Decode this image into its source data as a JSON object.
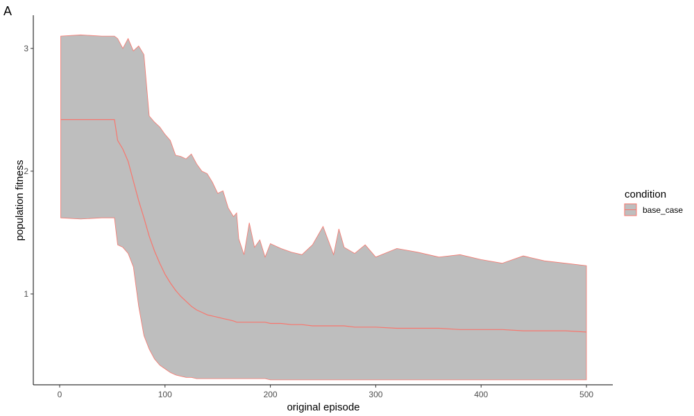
{
  "panel_tag": "A",
  "chart_data": {
    "type": "area",
    "xlabel": "original episode",
    "ylabel": "population fitness",
    "xlim": [
      -25,
      525
    ],
    "ylim": [
      0.26,
      3.27
    ],
    "x_ticks": [
      0,
      100,
      200,
      300,
      400,
      500
    ],
    "y_ticks": [
      1,
      2,
      3
    ],
    "grid": false,
    "legend": {
      "title": "condition",
      "position": "right",
      "entries": [
        "base_case"
      ]
    },
    "colors": {
      "band_fill": "#bebebe",
      "line": "#f8766d"
    },
    "series": [
      {
        "name": "base_case",
        "x": [
          1,
          20,
          40,
          52,
          55,
          60,
          65,
          70,
          75,
          80,
          85,
          90,
          95,
          100,
          105,
          110,
          115,
          120,
          125,
          130,
          135,
          140,
          145,
          150,
          155,
          160,
          165,
          168,
          170,
          175,
          180,
          185,
          190,
          195,
          200,
          210,
          220,
          230,
          240,
          250,
          260,
          265,
          270,
          280,
          290,
          300,
          320,
          340,
          360,
          380,
          400,
          420,
          440,
          460,
          480,
          500
        ],
        "mean": [
          2.42,
          2.42,
          2.42,
          2.42,
          2.25,
          2.18,
          2.08,
          1.92,
          1.76,
          1.62,
          1.47,
          1.35,
          1.25,
          1.16,
          1.09,
          1.03,
          0.98,
          0.94,
          0.9,
          0.87,
          0.85,
          0.83,
          0.82,
          0.81,
          0.8,
          0.79,
          0.78,
          0.77,
          0.77,
          0.77,
          0.77,
          0.77,
          0.77,
          0.77,
          0.76,
          0.76,
          0.75,
          0.75,
          0.74,
          0.74,
          0.74,
          0.74,
          0.74,
          0.73,
          0.73,
          0.73,
          0.72,
          0.72,
          0.72,
          0.71,
          0.71,
          0.71,
          0.7,
          0.7,
          0.7,
          0.69
        ],
        "upper": [
          3.1,
          3.11,
          3.1,
          3.1,
          3.08,
          3.0,
          3.08,
          2.98,
          3.02,
          2.95,
          2.45,
          2.4,
          2.36,
          2.3,
          2.25,
          2.13,
          2.12,
          2.1,
          2.14,
          2.06,
          2.0,
          1.98,
          1.91,
          1.82,
          1.84,
          1.7,
          1.63,
          1.66,
          1.45,
          1.32,
          1.58,
          1.38,
          1.44,
          1.3,
          1.41,
          1.37,
          1.34,
          1.32,
          1.4,
          1.55,
          1.32,
          1.53,
          1.38,
          1.33,
          1.4,
          1.3,
          1.37,
          1.34,
          1.3,
          1.32,
          1.28,
          1.25,
          1.31,
          1.27,
          1.25,
          1.23
        ],
        "lower": [
          1.62,
          1.61,
          1.62,
          1.62,
          1.4,
          1.38,
          1.33,
          1.22,
          0.9,
          0.66,
          0.55,
          0.47,
          0.42,
          0.39,
          0.36,
          0.34,
          0.33,
          0.32,
          0.32,
          0.31,
          0.31,
          0.31,
          0.31,
          0.31,
          0.31,
          0.31,
          0.31,
          0.31,
          0.31,
          0.31,
          0.31,
          0.31,
          0.31,
          0.31,
          0.3,
          0.3,
          0.3,
          0.3,
          0.3,
          0.3,
          0.3,
          0.3,
          0.3,
          0.3,
          0.3,
          0.3,
          0.3,
          0.3,
          0.3,
          0.3,
          0.3,
          0.3,
          0.3,
          0.3,
          0.3,
          0.3
        ]
      }
    ]
  }
}
